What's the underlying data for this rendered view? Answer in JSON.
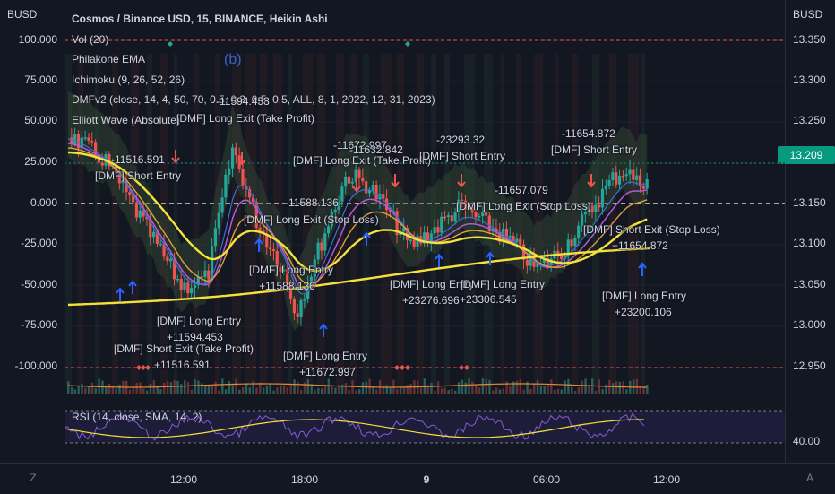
{
  "header": {
    "symbol_title": "Cosmos / Binance USD, 15, BINANCE, Heikin Ashi",
    "indicators": [
      "Vol (20)",
      "Philakone EMA",
      "Ichimoku (9, 26, 52, 26)",
      "DMFv2 (close, 14, 4, 50, 70, 0.5, 0.3, 0.5, 0.5, ALL, 8, 1, 2022, 12, 31, 2023)",
      "Elliott Wave (Absolute)"
    ],
    "wave_label": "(b)"
  },
  "axes": {
    "left_title": "BUSD",
    "right_title": "BUSD",
    "left_ticks": [
      "100.000",
      "75.000",
      "50.000",
      "25.000",
      "0.000",
      "-25.000",
      "-50.000",
      "-75.000",
      "-100.000"
    ],
    "right_ticks": [
      "13.350",
      "13.300",
      "13.250",
      "13.150",
      "13.100",
      "13.050",
      "13.000",
      "12.950"
    ],
    "rsi_tick": "40.00",
    "current_price": "13.209",
    "current_price_color": "#089981",
    "time_labels": [
      "12:00",
      "18:00",
      "9",
      "06:00",
      "12:00"
    ]
  },
  "rsi": {
    "legend": "RSI (14, close, SMA, 14, 2)"
  },
  "controls": {
    "left_button": "Z",
    "right_button": "A"
  },
  "annotations": [
    {
      "text": "-11594.453"
    },
    {
      "text": "[DMF] Long Exit (Take Profit)"
    },
    {
      "text": "-11516.591"
    },
    {
      "text": "[DMF] Short Entry"
    },
    {
      "text": "-11672.997"
    },
    {
      "text": "-11632.842"
    },
    {
      "text": "[DMF] Long Exit (Take Profit)"
    },
    {
      "text": "-23293.32"
    },
    {
      "text": "[DMF] Short Entry"
    },
    {
      "text": "-11654.872"
    },
    {
      "text": "[DMF] Short Entry"
    },
    {
      "text": "-11588.136"
    },
    {
      "text": "[DMF] Long Exit (Stop Loss)"
    },
    {
      "text": "-11657.079"
    },
    {
      "text": "[DMF] Long Exit (Stop Loss)"
    },
    {
      "text": "[DMF] Short Exit (Stop Loss)"
    },
    {
      "text": "+11654.872"
    },
    {
      "text": "[DMF] Long Entry"
    },
    {
      "text": "+11588.136"
    },
    {
      "text": "[DMF] Long Entry"
    },
    {
      "text": "[DMF] Long Entry"
    },
    {
      "text": "+23276.696"
    },
    {
      "text": "+23306.545"
    },
    {
      "text": "[DMF] Long Entry"
    },
    {
      "text": "+23200.106"
    },
    {
      "text": "[DMF] Long Entry"
    },
    {
      "text": "+11594.453"
    },
    {
      "text": "[DMF] Short Exit (Take Profit)"
    },
    {
      "text": "+11516.591"
    },
    {
      "text": "[DMF] Long Entry"
    },
    {
      "text": "+11672.997"
    }
  ],
  "colors": {
    "background": "#131722",
    "bull_candle": "#26a69a",
    "bear_candle": "#ef5350",
    "ema_yellow": "#f5e13c",
    "ema_purple": "#b05ad6",
    "ema_blue": "#3d6fd6",
    "rsi_line": "#7e57c2"
  }
}
